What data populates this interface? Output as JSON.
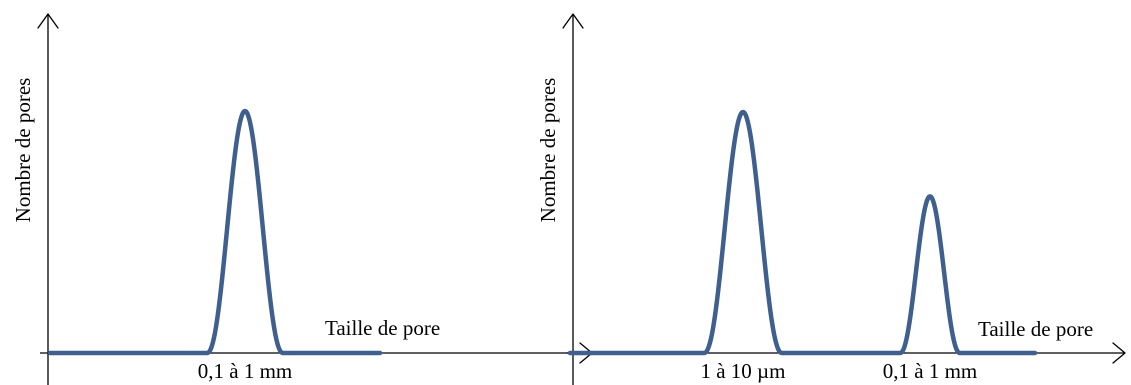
{
  "chart_data": [
    {
      "type": "line",
      "title": "",
      "xlabel": "Taille de pore",
      "ylabel": "Nombre de pores",
      "grid": false,
      "legend": "none",
      "line_color": "#3f5f8f",
      "x_tick_labels": [
        "0,1 à 1 mm"
      ],
      "peaks": [
        {
          "label": "0,1 à 1 mm",
          "relative_height": 1.0
        }
      ]
    },
    {
      "type": "line",
      "title": "",
      "xlabel": "Taille de pore",
      "ylabel": "Nombre de pores",
      "grid": false,
      "legend": "none",
      "line_color": "#3f5f8f",
      "x_tick_labels": [
        "1 à 10 µm",
        "0,1 à 1 mm"
      ],
      "peaks": [
        {
          "label": "1 à 10 µm",
          "relative_height": 1.0
        },
        {
          "label": "0,1 à 1 mm",
          "relative_height": 0.65
        }
      ]
    }
  ]
}
